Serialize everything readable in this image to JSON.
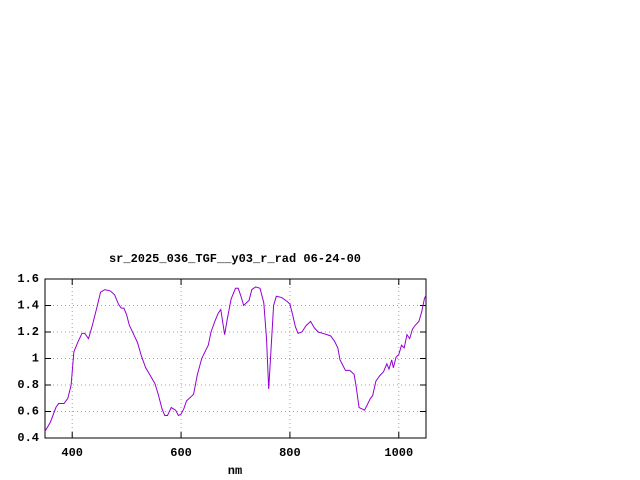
{
  "chart_data": {
    "type": "line",
    "title": "sr_2025_036_TGF__y03_r_rad 06-24-00",
    "x_label": "nm",
    "xlim": [
      350,
      1050
    ],
    "xticks": [
      400,
      600,
      800,
      1000
    ],
    "ylim": [
      0.4,
      1.6
    ],
    "yticks": [
      0.4,
      0.6,
      0.8,
      1,
      1.2,
      1.4,
      1.6
    ],
    "grid": true,
    "series": [
      {
        "color": "#9400d3",
        "x": [
          350,
          360,
          370,
          375,
          385,
          392,
          398,
          403,
          410,
          418,
          423,
          430,
          437,
          445,
          452,
          460,
          470,
          478,
          485,
          490,
          495,
          500,
          505,
          512,
          520,
          527,
          535,
          545,
          552,
          558,
          565,
          570,
          575,
          582,
          590,
          595,
          600,
          605,
          610,
          618,
          623,
          630,
          638,
          645,
          650,
          655,
          662,
          668,
          673,
          680,
          685,
          692,
          700,
          705,
          710,
          715,
          720,
          725,
          730,
          737,
          745,
          752,
          757,
          761,
          765,
          770,
          775,
          785,
          795,
          800,
          805,
          810,
          815,
          822,
          830,
          838,
          845,
          852,
          860,
          868,
          875,
          882,
          888,
          892,
          897,
          902,
          910,
          918,
          922,
          927,
          932,
          937,
          942,
          948,
          952,
          958,
          965,
          972,
          978,
          982,
          987,
          990,
          995,
          1000,
          1005,
          1010,
          1015,
          1020,
          1025,
          1030,
          1037,
          1042,
          1047,
          1050
        ],
        "values": [
          0.45,
          0.52,
          0.63,
          0.66,
          0.66,
          0.7,
          0.8,
          1.05,
          1.12,
          1.19,
          1.19,
          1.15,
          1.25,
          1.38,
          1.5,
          1.52,
          1.51,
          1.48,
          1.41,
          1.38,
          1.38,
          1.33,
          1.25,
          1.19,
          1.12,
          1.02,
          0.93,
          0.86,
          0.81,
          0.73,
          0.62,
          0.57,
          0.57,
          0.63,
          0.61,
          0.57,
          0.58,
          0.62,
          0.68,
          0.71,
          0.73,
          0.88,
          1.0,
          1.06,
          1.1,
          1.2,
          1.28,
          1.34,
          1.37,
          1.18,
          1.3,
          1.45,
          1.53,
          1.53,
          1.47,
          1.4,
          1.42,
          1.44,
          1.52,
          1.54,
          1.53,
          1.42,
          1.15,
          0.77,
          1.05,
          1.4,
          1.47,
          1.46,
          1.43,
          1.41,
          1.33,
          1.24,
          1.19,
          1.2,
          1.25,
          1.28,
          1.23,
          1.2,
          1.19,
          1.18,
          1.17,
          1.13,
          1.08,
          0.99,
          0.95,
          0.91,
          0.91,
          0.88,
          0.78,
          0.63,
          0.62,
          0.61,
          0.65,
          0.7,
          0.72,
          0.83,
          0.87,
          0.9,
          0.96,
          0.92,
          0.99,
          0.93,
          1.01,
          1.03,
          1.1,
          1.08,
          1.18,
          1.15,
          1.22,
          1.25,
          1.28,
          1.35,
          1.45,
          1.48
        ]
      }
    ]
  }
}
